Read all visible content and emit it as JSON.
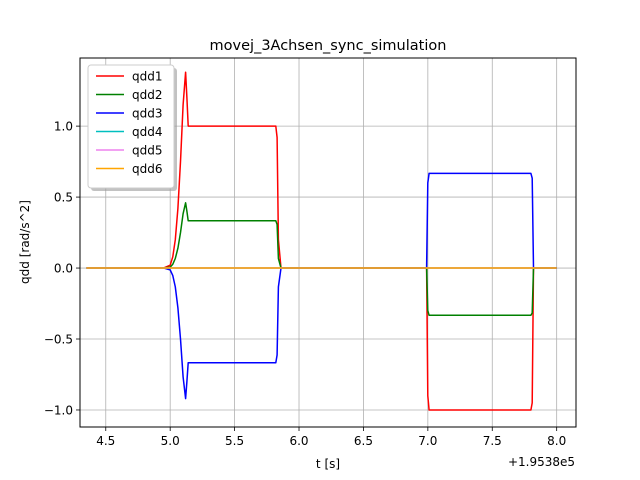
{
  "chart_data": {
    "type": "line",
    "title": "movej_3Achsen_sync_simulation",
    "xlabel": "t [s]",
    "ylabel": "qdd [rad/s^2]",
    "x_offset_label": "+1.9538e5",
    "xlim": [
      4.3,
      8.15
    ],
    "ylim": [
      -1.12,
      1.48
    ],
    "x_ticks": [
      4.5,
      5.0,
      5.5,
      6.0,
      6.5,
      7.0,
      7.5,
      8.0
    ],
    "x_tick_labels": [
      "4.5",
      "5.0",
      "5.5",
      "6.0",
      "6.5",
      "7.0",
      "7.5",
      "8.0"
    ],
    "y_ticks": [
      -1.0,
      -0.5,
      0.0,
      0.5,
      1.0
    ],
    "y_tick_labels": [
      "−1.0",
      "−0.5",
      "0.0",
      "0.5",
      "1.0"
    ],
    "grid": true,
    "legend_position": "upper-left",
    "series": [
      {
        "name": "qdd1",
        "color": "#ff0000",
        "x": [
          4.35,
          4.95,
          5.0,
          5.02,
          5.04,
          5.06,
          5.08,
          5.1,
          5.12,
          5.13,
          5.14,
          5.82,
          5.83,
          5.84,
          5.86,
          6.99,
          7.0,
          7.01,
          7.8,
          7.81,
          7.82,
          8.0
        ],
        "y": [
          0,
          0,
          0.02,
          0.08,
          0.2,
          0.42,
          0.75,
          1.15,
          1.38,
          1.2,
          1.0,
          1.0,
          0.92,
          0.2,
          0,
          0,
          -0.9,
          -1.0,
          -1.0,
          -0.95,
          0,
          0
        ]
      },
      {
        "name": "qdd2",
        "color": "#008000",
        "x": [
          4.35,
          4.95,
          5.0,
          5.02,
          5.04,
          5.06,
          5.08,
          5.1,
          5.12,
          5.13,
          5.14,
          5.82,
          5.83,
          5.84,
          5.86,
          6.99,
          7.0,
          7.01,
          7.8,
          7.81,
          7.82,
          8.0
        ],
        "y": [
          0,
          0,
          0.007,
          0.027,
          0.067,
          0.14,
          0.25,
          0.383,
          0.46,
          0.4,
          0.333,
          0.333,
          0.307,
          0.067,
          0,
          0,
          -0.3,
          -0.333,
          -0.333,
          -0.317,
          0,
          0
        ]
      },
      {
        "name": "qdd3",
        "color": "#0000ff",
        "x": [
          4.35,
          4.95,
          5.0,
          5.02,
          5.04,
          5.06,
          5.08,
          5.1,
          5.12,
          5.13,
          5.14,
          5.82,
          5.83,
          5.84,
          5.86,
          6.99,
          7.0,
          7.01,
          7.8,
          7.81,
          7.82,
          8.0
        ],
        "y": [
          0,
          0,
          -0.013,
          -0.053,
          -0.133,
          -0.28,
          -0.5,
          -0.767,
          -0.92,
          -0.8,
          -0.667,
          -0.667,
          -0.613,
          -0.133,
          0,
          0,
          0.6,
          0.667,
          0.667,
          0.633,
          0,
          0
        ]
      },
      {
        "name": "qdd4",
        "color": "#00bfbf",
        "x": [
          4.35,
          8.0
        ],
        "y": [
          0,
          0
        ]
      },
      {
        "name": "qdd5",
        "color": "#ee82ee",
        "x": [
          4.35,
          8.0
        ],
        "y": [
          0,
          0
        ]
      },
      {
        "name": "qdd6",
        "color": "#ffa500",
        "x": [
          4.35,
          8.0
        ],
        "y": [
          0,
          0
        ]
      }
    ]
  }
}
